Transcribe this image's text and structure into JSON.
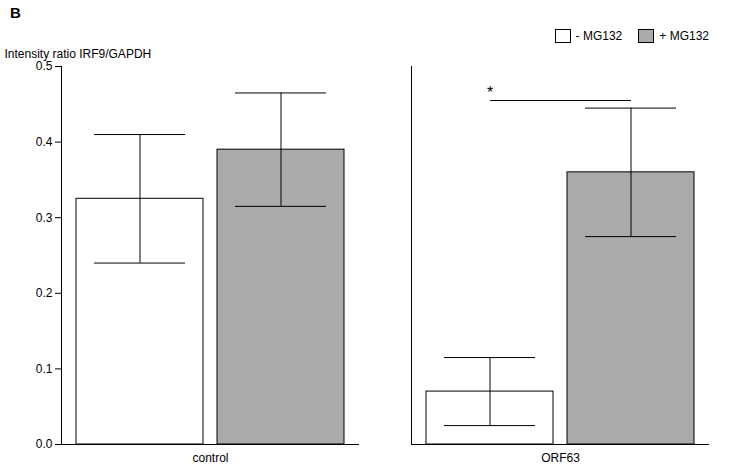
{
  "chart_data": {
    "type": "bar",
    "title": "B",
    "categories": [
      "control",
      "ORF63"
    ],
    "series": [
      {
        "name": "- MG132",
        "color": "#ffffff",
        "values": [
          0.325,
          0.07
        ],
        "errors": [
          0.085,
          0.045
        ]
      },
      {
        "name": "+ MG132",
        "color": "#aaaaaa",
        "values": [
          0.39,
          0.36
        ],
        "errors": [
          0.075,
          0.085
        ]
      }
    ],
    "ylabel": "Intensity ratio IRF9/GAPDH",
    "ylim": [
      0.0,
      0.5
    ],
    "yticks": [
      {
        "value": 0,
        "label": "0.0"
      },
      0.1,
      0.2,
      0.3,
      0.4,
      0.5
    ],
    "grid": false,
    "legend": "upper right",
    "annotations": [
      {
        "text": "*",
        "category": "ORF63",
        "y": 0.455
      }
    ]
  }
}
